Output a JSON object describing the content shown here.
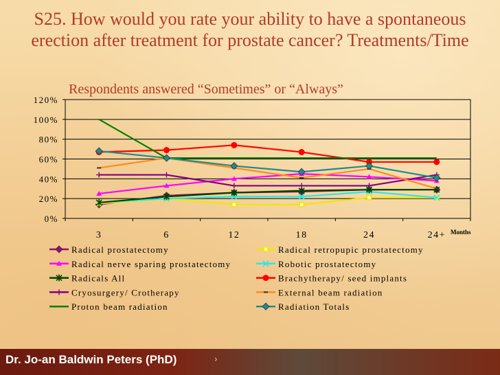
{
  "slide": {
    "title": "S25.  How would you rate your ability to have a spontaneous erection after treatment for prostate cancer?  Treatments/Time",
    "subtitle": "Respondents answered “Sometimes” or “Always”",
    "footer": "Dr. Jo-an Baldwin Peters (PhD)",
    "footer_mark": "›",
    "months_label": "Months"
  },
  "chart_data": {
    "type": "line",
    "title": "Respondents answered “Sometimes” or “Always”",
    "xlabel": "Months",
    "ylabel": "",
    "categories": [
      "3",
      "6",
      "12",
      "18",
      "24",
      "24+"
    ],
    "ylim": [
      0,
      120
    ],
    "y_ticks": [
      0,
      20,
      40,
      60,
      80,
      100,
      120
    ],
    "y_tick_labels": [
      "0%",
      "20%",
      "40%",
      "60%",
      "80%",
      "100%",
      "120%"
    ],
    "grid": "horizontal",
    "legend_position": "bottom",
    "series": [
      {
        "name": "Radical prostatectomy",
        "color": "#9a0a70",
        "marker": "diamond",
        "values": [
          14,
          23,
          26,
          27,
          29,
          29
        ]
      },
      {
        "name": "Radical retropupic prostatectomy",
        "color": "#f2e600",
        "marker": "square",
        "values": [
          15,
          20,
          14,
          14,
          21,
          21
        ]
      },
      {
        "name": "Radical nerve sparing prostatectomy",
        "color": "#ff00ff",
        "marker": "triangle",
        "values": [
          25,
          33,
          40,
          45,
          42,
          38
        ]
      },
      {
        "name": "Robotic prostatectomy",
        "color": "#2ee6e6",
        "marker": "x",
        "values": [
          16,
          20,
          22,
          22,
          27,
          21
        ]
      },
      {
        "name": "Radicals All",
        "color": "#004400",
        "marker": "star",
        "values": [
          16,
          22,
          26,
          28,
          29,
          29
        ]
      },
      {
        "name": "Brachytherapy/ seed implants",
        "color": "#ff0000",
        "marker": "circle",
        "values": [
          67,
          69,
          74,
          67,
          57,
          57
        ]
      },
      {
        "name": "Cryosurgery/ Crotherapy",
        "color": "#800080",
        "marker": "plus",
        "values": [
          44,
          44,
          33,
          33,
          33,
          44
        ]
      },
      {
        "name": "External beam radiation",
        "color": "#ff8a1c",
        "marker": "dash",
        "values": [
          51,
          61,
          51,
          41,
          50,
          30
        ]
      },
      {
        "name": "Proton beam radiation",
        "color": "#008000",
        "marker": "none",
        "values": [
          100,
          61,
          61,
          61,
          61,
          61
        ]
      },
      {
        "name": "Radiation Totals",
        "color": "#1f8c8c",
        "marker": "diamond",
        "values": [
          68,
          61,
          53,
          47,
          53,
          41
        ]
      }
    ]
  }
}
